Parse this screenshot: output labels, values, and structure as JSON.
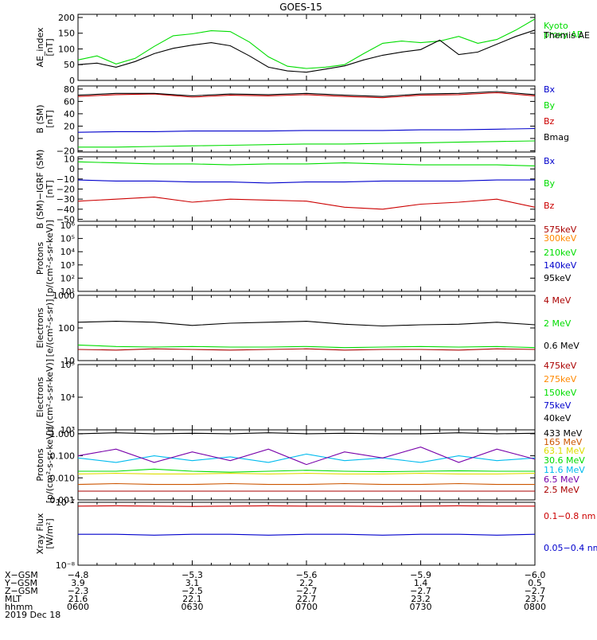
{
  "title": "GOES-15",
  "colors": {
    "black": "#000000",
    "green": "#00dd00",
    "blue": "#0000cc",
    "red": "#cc0000",
    "darkred": "#aa0000",
    "orange": "#ff8800",
    "darkorange": "#cc5500",
    "yellow": "#dddd00",
    "cyan": "#00bbee",
    "purple": "#7700aa"
  },
  "chart_data": [
    {
      "type": "line",
      "ylabel": "AE_index\n[nT]",
      "yscale": "linear",
      "ylim": [
        0,
        210
      ],
      "yticks": [
        0,
        50,
        100,
        150,
        200
      ],
      "ytick_labels": [
        "0",
        "50",
        "100",
        "150",
        "200"
      ],
      "x": [
        0,
        5,
        10,
        15,
        20,
        25,
        30,
        35,
        40,
        45,
        50,
        55,
        60,
        65,
        70,
        75,
        80,
        85,
        90,
        95,
        100,
        105,
        110,
        115,
        120
      ],
      "series": [
        {
          "name": "Kyoto\nproxy AE",
          "color": "#00dd00",
          "values": [
            65,
            78,
            52,
            70,
            108,
            142,
            148,
            158,
            155,
            122,
            75,
            45,
            38,
            42,
            50,
            85,
            118,
            125,
            120,
            125,
            140,
            118,
            130,
            160,
            195
          ]
        },
        {
          "name": "Themis AE",
          "color": "#000000",
          "values": [
            50,
            55,
            42,
            60,
            85,
            102,
            112,
            120,
            110,
            78,
            42,
            30,
            26,
            36,
            46,
            65,
            80,
            90,
            98,
            128,
            82,
            90,
            115,
            140,
            160
          ]
        }
      ]
    },
    {
      "type": "line",
      "ylabel": "B (SM)\n[nT]",
      "yscale": "linear",
      "ylim": [
        -22,
        85
      ],
      "yticks": [
        -20,
        0,
        20,
        40,
        60,
        80
      ],
      "ytick_labels": [
        "−20",
        "0",
        "20",
        "40",
        "60",
        "80"
      ],
      "x": [
        0,
        10,
        20,
        30,
        40,
        50,
        60,
        70,
        80,
        90,
        100,
        110,
        120
      ],
      "series": [
        {
          "name": "Bx",
          "color": "#0000cc",
          "values": [
            10,
            11,
            11,
            12,
            12,
            12,
            13,
            13,
            13,
            14,
            14,
            15,
            16
          ]
        },
        {
          "name": "By",
          "color": "#00dd00",
          "values": [
            -14,
            -14,
            -13,
            -12,
            -11,
            -10,
            -9,
            -9,
            -8,
            -7,
            -6,
            -5,
            -4
          ]
        },
        {
          "name": "Bz",
          "color": "#cc0000",
          "values": [
            68,
            71,
            72,
            67,
            70,
            69,
            71,
            68,
            66,
            70,
            71,
            74,
            69
          ]
        },
        {
          "name": "Bmag",
          "color": "#000000",
          "values": [
            70,
            73,
            73,
            69,
            72,
            71,
            73,
            70,
            68,
            72,
            73,
            76,
            71
          ]
        }
      ]
    },
    {
      "type": "line",
      "ylabel": "B (SM)−IGRF (SM)\n[nT]",
      "yscale": "linear",
      "ylim": [
        -52,
        12
      ],
      "yticks": [
        -50,
        -40,
        -30,
        -20,
        -10,
        0,
        10
      ],
      "ytick_labels": [
        "−50",
        "−40",
        "−30",
        "−20",
        "−10",
        "0",
        "10"
      ],
      "x": [
        0,
        10,
        20,
        30,
        40,
        50,
        60,
        70,
        80,
        90,
        100,
        110,
        120
      ],
      "series": [
        {
          "name": "Bx",
          "color": "#0000cc",
          "values": [
            -11,
            -12,
            -12,
            -13,
            -13,
            -14,
            -13,
            -13,
            -12,
            -12,
            -12,
            -11,
            -11
          ]
        },
        {
          "name": "By",
          "color": "#00dd00",
          "values": [
            7,
            6,
            5,
            5,
            4,
            5,
            5,
            6,
            5,
            4,
            4,
            4,
            3
          ]
        },
        {
          "name": "Bz",
          "color": "#cc0000",
          "values": [
            -32,
            -30,
            -28,
            -33,
            -30,
            -31,
            -32,
            -38,
            -40,
            -35,
            -33,
            -30,
            -38
          ]
        }
      ]
    },
    {
      "type": "line",
      "ylabel": "Protons\n[p/(cm²-s-sr-keV)]",
      "yscale": "log",
      "ylim": [
        10,
        1000000
      ],
      "yticks": [
        10,
        100,
        1000,
        10000,
        100000,
        1000000
      ],
      "ytick_labels": [
        "10¹",
        "10²",
        "10³",
        "10⁴",
        "10⁵",
        "10⁶"
      ],
      "series": [
        {
          "name": "575keV",
          "color": "#aa0000",
          "values": []
        },
        {
          "name": "300keV",
          "color": "#ff8800",
          "values": []
        },
        {
          "name": "210keV",
          "color": "#00dd00",
          "values": []
        },
        {
          "name": "140keV",
          "color": "#0000cc",
          "values": []
        },
        {
          "name": "95keV",
          "color": "#000000",
          "values": []
        }
      ]
    },
    {
      "type": "line",
      "ylabel": "Electrons\n[e/(cm²-s-sr)]",
      "yscale": "log",
      "ylim": [
        10,
        1000
      ],
      "yticks": [
        10,
        100,
        1000
      ],
      "ytick_labels": [
        "10",
        "100",
        "1000"
      ],
      "x": [
        0,
        10,
        20,
        30,
        40,
        50,
        60,
        70,
        80,
        90,
        100,
        110,
        120
      ],
      "series": [
        {
          "name": "4 MeV",
          "color": "#aa0000",
          "values": [
            22,
            21,
            23,
            22,
            21,
            22,
            23,
            21,
            22,
            22,
            21,
            23,
            22
          ]
        },
        {
          "name": "2 MeV",
          "color": "#00dd00",
          "values": [
            30,
            27,
            26,
            27,
            26,
            26,
            27,
            25,
            26,
            27,
            26,
            27,
            25
          ]
        },
        {
          "name": "0.6 MeV",
          "color": "#000000",
          "values": [
            150,
            160,
            150,
            120,
            140,
            150,
            160,
            130,
            115,
            125,
            130,
            150,
            125
          ]
        }
      ]
    },
    {
      "type": "line",
      "ylabel": "Electrons\n[e/(cm²-s-sr-keV)]",
      "yscale": "log",
      "ylim": [
        1000,
        100000
      ],
      "yticks": [
        1000,
        10000,
        100000
      ],
      "ytick_labels": [
        "10³",
        "10⁴",
        "10⁵"
      ],
      "series": [
        {
          "name": "475keV",
          "color": "#aa0000",
          "values": []
        },
        {
          "name": "275keV",
          "color": "#ff8800",
          "values": []
        },
        {
          "name": "150keV",
          "color": "#00dd00",
          "values": []
        },
        {
          "name": "75keV",
          "color": "#0000cc",
          "values": []
        },
        {
          "name": "40keV",
          "color": "#000000",
          "values": []
        }
      ]
    },
    {
      "type": "line",
      "ylabel": "Protons\n[p/(cm²-s-sr-keV)]",
      "yscale": "log",
      "ylim": [
        0.001,
        1.5
      ],
      "yticks": [
        0.001,
        0.01,
        0.1,
        1
      ],
      "ytick_labels": [
        "0.001",
        "0.010",
        "0.100",
        "1.000"
      ],
      "x": [
        0,
        10,
        20,
        30,
        40,
        50,
        60,
        70,
        80,
        90,
        100,
        110,
        120
      ],
      "series": [
        {
          "name": "433 MeV",
          "color": "#000000",
          "values": [
            1.0,
            1.1,
            1.0,
            1.05,
            1.0,
            1.1,
            1.0,
            1.05,
            1.0,
            1.0,
            1.1,
            1.0,
            1.05
          ]
        },
        {
          "name": "165 MeV",
          "color": "#cc5500",
          "values": [
            0.005,
            0.0055,
            0.005,
            0.005,
            0.0055,
            0.005,
            0.005,
            0.0055,
            0.005,
            0.005,
            0.0055,
            0.005,
            0.005
          ]
        },
        {
          "name": "63.1 MeV",
          "color": "#dddd00",
          "values": [
            0.015,
            0.016,
            0.015,
            0.015,
            0.016,
            0.015,
            0.016,
            0.015,
            0.015,
            0.016,
            0.015,
            0.015,
            0.016
          ]
        },
        {
          "name": "30.6 MeV",
          "color": "#00dd00",
          "values": [
            0.02,
            0.02,
            0.025,
            0.02,
            0.018,
            0.02,
            0.022,
            0.02,
            0.019,
            0.02,
            0.021,
            0.02,
            0.02
          ]
        },
        {
          "name": "11.6 MeV",
          "color": "#00bbee",
          "values": [
            0.08,
            0.05,
            0.1,
            0.06,
            0.09,
            0.05,
            0.12,
            0.06,
            0.08,
            0.05,
            0.1,
            0.06,
            0.08
          ]
        },
        {
          "name": "6.5 MeV",
          "color": "#7700aa",
          "values": [
            0.1,
            0.2,
            0.05,
            0.15,
            0.06,
            0.2,
            0.04,
            0.15,
            0.08,
            0.25,
            0.05,
            0.2,
            0.07
          ]
        },
        {
          "name": "2.5 MeV",
          "color": "#aa0000",
          "values": [
            0.0025,
            0.0025,
            0.0025,
            0.0025,
            0.0025,
            0.0025,
            0.0025,
            0.0025,
            0.0025,
            0.0025,
            0.0025,
            0.0025,
            0.0025
          ]
        }
      ]
    },
    {
      "type": "line",
      "ylabel": "Xray Flux\n[W/m²]",
      "yscale": "log",
      "ylim": [
        1e-08,
        1e-07
      ],
      "yticks": [
        1e-08,
        1e-07
      ],
      "ytick_labels": [
        "10⁻⁸",
        "10⁻⁷"
      ],
      "x": [
        0,
        10,
        20,
        30,
        40,
        50,
        60,
        70,
        80,
        90,
        100,
        110,
        120
      ],
      "series": [
        {
          "name": "0.1−0.8 nm",
          "color": "#cc0000",
          "values": [
            8.7e-08,
            8.8e-08,
            8.7e-08,
            8.6e-08,
            8.7e-08,
            8.8e-08,
            8.7e-08,
            8.7e-08,
            8.6e-08,
            8.7e-08,
            8.8e-08,
            8.7e-08,
            8.7e-08
          ]
        },
        {
          "name": "0.05−0.4 nm",
          "color": "#0000cc",
          "values": [
            3.1e-08,
            3.1e-08,
            3e-08,
            3.1e-08,
            3.1e-08,
            3e-08,
            3.1e-08,
            3.1e-08,
            3e-08,
            3.1e-08,
            3.1e-08,
            3e-08,
            3.1e-08
          ]
        }
      ]
    }
  ],
  "ephemeris": {
    "row_labels": [
      "X−GSM",
      "Y−GSM",
      "Z−GSM",
      "MLT",
      "hhmm"
    ],
    "columns": [
      [
        "−4.8",
        "3.9",
        "−2.3",
        "21.6",
        "0600"
      ],
      [
        "−5.3",
        "3.1",
        "−2.5",
        "22.1",
        "0630"
      ],
      [
        "−5.6",
        "2.2",
        "−2.7",
        "22.7",
        "0700"
      ],
      [
        "−5.9",
        "1.4",
        "−2.7",
        "23.2",
        "0730"
      ],
      [
        "−6.0",
        "0.5",
        "−2.7",
        "23.7",
        "0800"
      ]
    ],
    "date": "2019 Dec 18"
  }
}
